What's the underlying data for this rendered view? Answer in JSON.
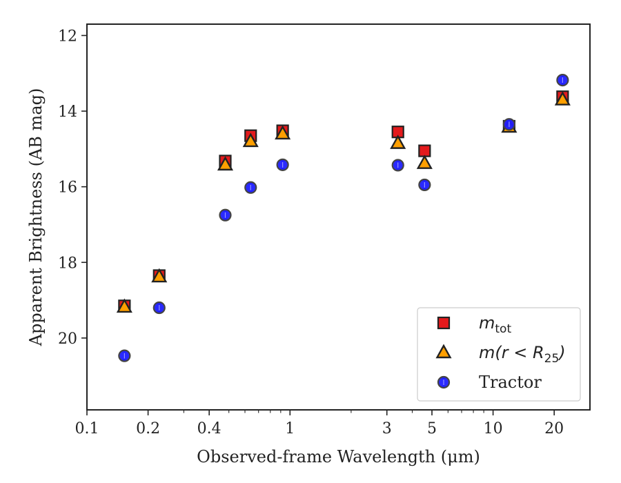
{
  "chart_data": {
    "type": "scatter",
    "xlabel": "Observed-frame Wavelength (μm)",
    "ylabel": "Apparent Brightness (AB mag)",
    "xscale": "log",
    "xlim": [
      0.1,
      30
    ],
    "ylim": [
      21.9,
      11.7
    ],
    "y_inverted": true,
    "x_ticks": [
      {
        "value": 0.1,
        "label": "0.1"
      },
      {
        "value": 0.2,
        "label": "0.2"
      },
      {
        "value": 0.4,
        "label": "0.4"
      },
      {
        "value": 1,
        "label": "1"
      },
      {
        "value": 3,
        "label": "3"
      },
      {
        "value": 5,
        "label": "5"
      },
      {
        "value": 10,
        "label": "10"
      },
      {
        "value": 20,
        "label": "20"
      }
    ],
    "y_ticks": [
      {
        "value": 12,
        "label": "12"
      },
      {
        "value": 14,
        "label": "14"
      },
      {
        "value": 16,
        "label": "16"
      },
      {
        "value": 18,
        "label": "18"
      },
      {
        "value": 20,
        "label": "20"
      }
    ],
    "grid": false,
    "legend_position": "bottom-right",
    "series": [
      {
        "name": "m_tot",
        "marker": "square",
        "fill": "#e41a1c",
        "edge": "#222222",
        "errcolor": "#e41a1c",
        "x": [
          0.153,
          0.227,
          0.48,
          0.64,
          0.92,
          3.4,
          4.6,
          12.0,
          22.0
        ],
        "y": [
          19.15,
          18.35,
          15.32,
          14.65,
          14.52,
          14.55,
          15.05,
          14.4,
          13.62
        ]
      },
      {
        "name": "m(r < R_25)",
        "marker": "triangle",
        "fill": "#ff9f00",
        "edge": "#222222",
        "errcolor": "#ffa500",
        "x": [
          0.153,
          0.227,
          0.48,
          0.64,
          0.92,
          3.4,
          4.6,
          12.0,
          22.0
        ],
        "y": [
          19.18,
          18.38,
          15.42,
          14.8,
          14.6,
          14.85,
          15.38,
          14.42,
          13.7
        ]
      },
      {
        "name": "Tractor",
        "marker": "circle",
        "fill": "#1f1fff",
        "edge": "#444444",
        "errcolor": "#1f1fff",
        "x": [
          0.153,
          0.227,
          0.48,
          0.64,
          0.92,
          3.4,
          4.6,
          12.0,
          22.0
        ],
        "y": [
          20.47,
          19.2,
          16.75,
          16.02,
          15.42,
          15.43,
          15.95,
          14.35,
          13.18
        ]
      }
    ],
    "legend": {
      "entries": [
        {
          "label_base": "m",
          "label_sub": "tot"
        },
        {
          "label_base": "m(r < R",
          "label_sub": "25",
          "label_end": ")"
        },
        {
          "label_base": "Tractor"
        }
      ]
    }
  }
}
